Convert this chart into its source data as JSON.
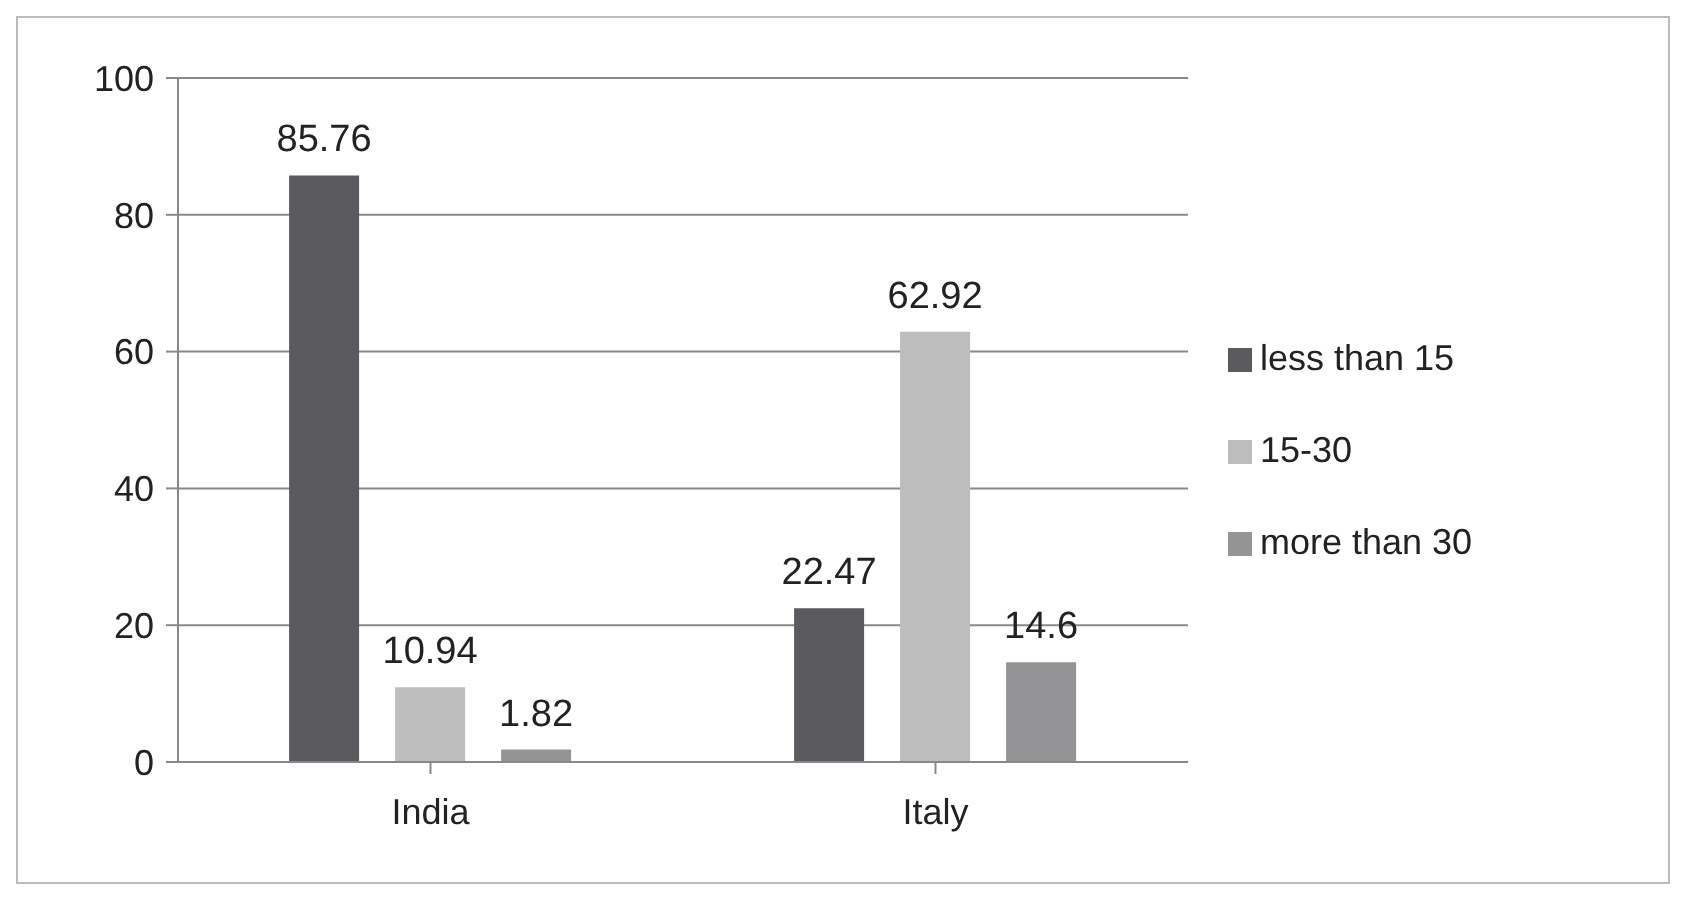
{
  "chart_data": {
    "type": "bar",
    "categories": [
      "India",
      "Italy"
    ],
    "series": [
      {
        "name": "less than 15",
        "color": "#5a5a5e",
        "values": [
          85.76,
          22.47
        ]
      },
      {
        "name": "15-30",
        "color": "#bdbdbd",
        "values": [
          10.94,
          62.92
        ]
      },
      {
        "name": "more than 30",
        "color": "#949496",
        "values": [
          1.82,
          14.6
        ]
      }
    ],
    "ylim": [
      0,
      100
    ],
    "yticks": [
      0,
      20,
      40,
      60,
      80,
      100
    ],
    "grid": "y",
    "legend": "right",
    "data_labels": true
  }
}
